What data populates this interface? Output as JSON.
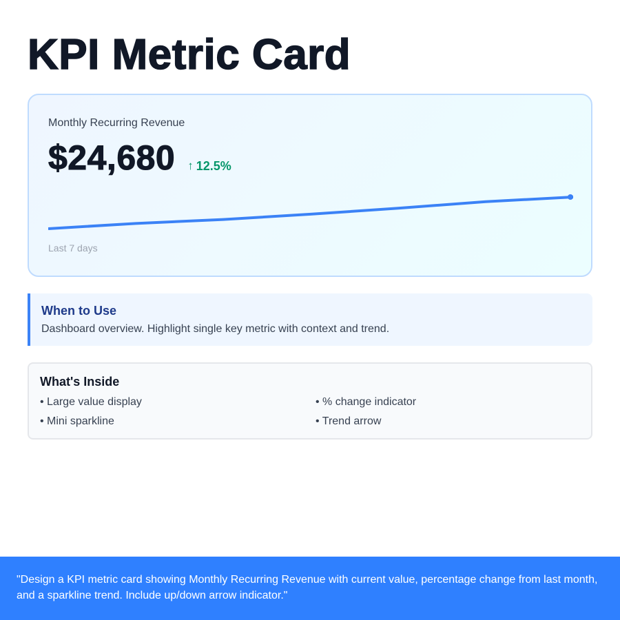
{
  "page": {
    "title": "KPI Metric Card"
  },
  "kpi_card": {
    "label": "Monthly Recurring Revenue",
    "value": "$24,680",
    "change": {
      "arrow": "↑",
      "text": "12.5%",
      "direction": "up",
      "color": "#059669"
    },
    "period": "Last 7 days",
    "sparkline_color": "#3b82f6"
  },
  "chart_data": {
    "type": "line",
    "title": "",
    "xlabel": "Last 7 days",
    "ylabel": "",
    "x": [
      1,
      2,
      3,
      4,
      5,
      6,
      7
    ],
    "values": [
      0,
      8,
      14,
      22,
      31,
      41,
      48
    ],
    "grid": false,
    "legend": "none"
  },
  "when_to_use": {
    "title": "When to Use",
    "text": "Dashboard overview. Highlight single key metric with context and trend."
  },
  "whats_inside": {
    "title": "What's Inside",
    "items": [
      "• Large value display",
      "• % change indicator",
      "• Mini sparkline",
      "• Trend arrow"
    ]
  },
  "footer": {
    "prompt": "\"Design a KPI metric card showing Monthly Recurring Revenue with current value, percentage change from last month, and a sparkline trend. Include up/down arrow indicator.\"",
    "background": "#2f80ff"
  }
}
